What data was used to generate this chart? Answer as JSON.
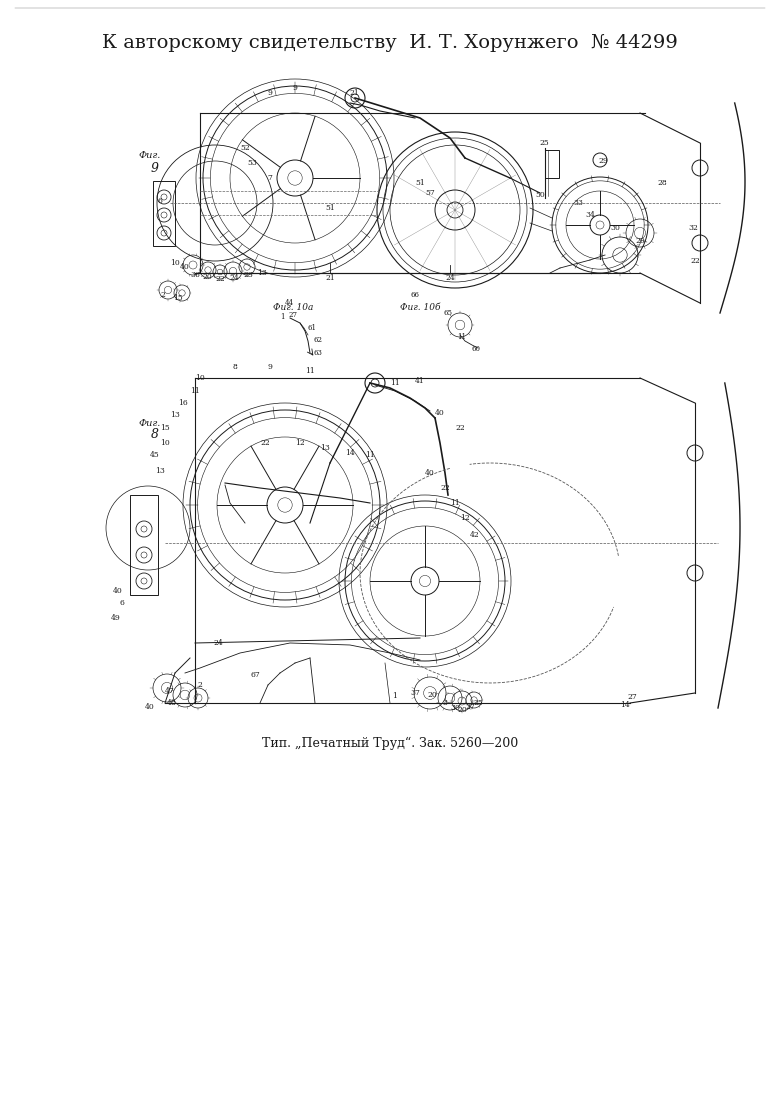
{
  "page_bg": "#ffffff",
  "line_color": "#1a1a1a",
  "title_text": "К авторскому свидетельству  И. Т. Хорунжего  № 44299",
  "footer_text": "Тип. „Печатный Труд“. Зак. 5260—200",
  "fig9_label": "Фиг. 9",
  "fig8_label": "Фиг. 8",
  "fig10a_label": "Фиг. 10а",
  "fig10b_label": "Фиг. 10б",
  "fignine_box_label": "Фиг.",
  "line_width": 0.8,
  "title_fontsize": 14,
  "footer_fontsize": 9,
  "label_fontsize": 7.5,
  "page_width": 7.8,
  "page_height": 11.03
}
